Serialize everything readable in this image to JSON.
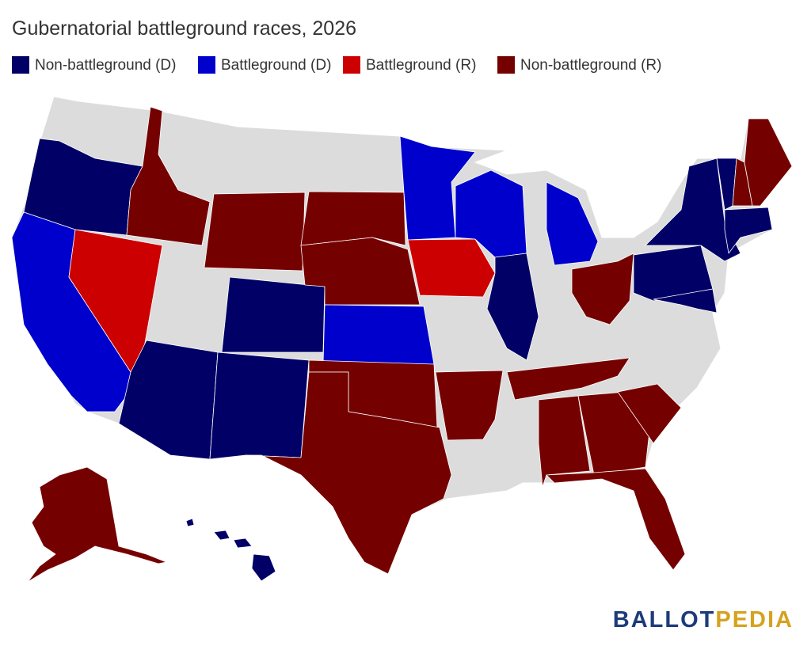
{
  "title": "Gubernatorial battleground races, 2026",
  "legend": [
    {
      "label": "Non-battleground (D)",
      "color": "#000066"
    },
    {
      "label": "Battleground (D)",
      "color": "#0000cc"
    },
    {
      "label": "Battleground (R)",
      "color": "#cc0000"
    },
    {
      "label": "Non-battleground (R)",
      "color": "#750000"
    }
  ],
  "logo": {
    "first": "BALLOT",
    "second": "PEDIA"
  }
}
